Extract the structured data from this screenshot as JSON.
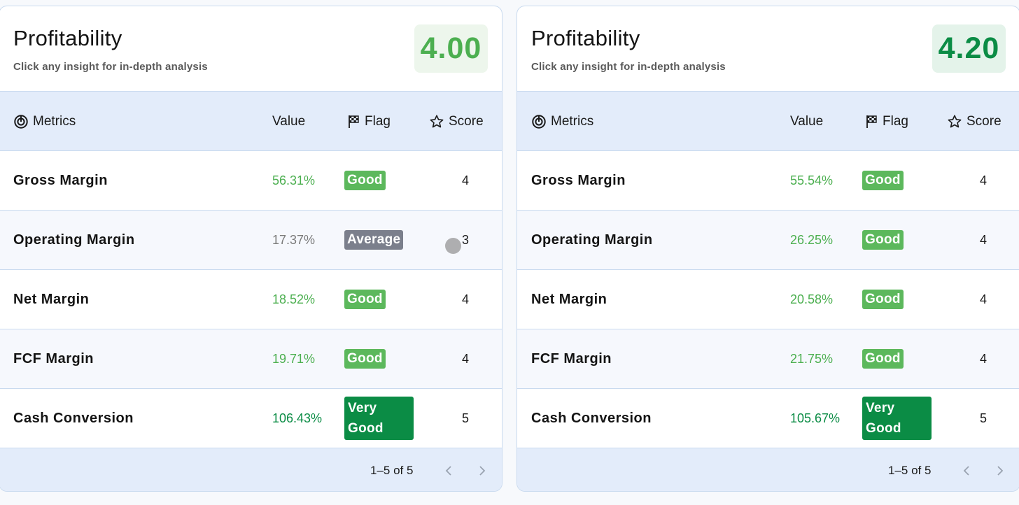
{
  "colors": {
    "good_value": "#4caf50",
    "average_value": "#7a7a7a",
    "very_good_value": "#0b8c45",
    "badge_good_bg": "#5cb85c",
    "badge_average_bg": "#7b7f8c",
    "badge_very_good_bg": "#0b8c45",
    "header_bg": "#e3ecfa",
    "border": "#c9daef"
  },
  "cards": [
    {
      "title": "Profitability",
      "subtitle": "Click any insight for in-depth analysis",
      "overall_score": "4.00",
      "overall_score_color": "#4caf50",
      "overall_score_bg": "#edf6ec",
      "columns": {
        "metrics": "Metrics",
        "value": "Value",
        "flag": "Flag",
        "score": "Score"
      },
      "rows": [
        {
          "name": "Gross Margin",
          "value": "56.31%",
          "value_color": "#4caf50",
          "flag": "Good",
          "flag_type": "good",
          "score": "4"
        },
        {
          "name": "Operating Margin",
          "value": "17.37%",
          "value_color": "#7a7a7a",
          "flag": "Average",
          "flag_type": "average",
          "score": "3"
        },
        {
          "name": "Net Margin",
          "value": "18.52%",
          "value_color": "#4caf50",
          "flag": "Good",
          "flag_type": "good",
          "score": "4"
        },
        {
          "name": "FCF Margin",
          "value": "19.71%",
          "value_color": "#4caf50",
          "flag": "Good",
          "flag_type": "good",
          "score": "4"
        },
        {
          "name": "Cash Conversion",
          "value": "106.43%",
          "value_color": "#0b8c45",
          "flag": "Very Good",
          "flag_type": "very_good",
          "score": "5"
        }
      ],
      "pagination": "1–5 of 5"
    },
    {
      "title": "Profitability",
      "subtitle": "Click any insight for in-depth analysis",
      "overall_score": "4.20",
      "overall_score_color": "#0b8c45",
      "overall_score_bg": "#e4f3ea",
      "columns": {
        "metrics": "Metrics",
        "value": "Value",
        "flag": "Flag",
        "score": "Score"
      },
      "rows": [
        {
          "name": "Gross Margin",
          "value": "55.54%",
          "value_color": "#4caf50",
          "flag": "Good",
          "flag_type": "good",
          "score": "4"
        },
        {
          "name": "Operating Margin",
          "value": "26.25%",
          "value_color": "#4caf50",
          "flag": "Good",
          "flag_type": "good",
          "score": "4"
        },
        {
          "name": "Net Margin",
          "value": "20.58%",
          "value_color": "#4caf50",
          "flag": "Good",
          "flag_type": "good",
          "score": "4"
        },
        {
          "name": "FCF Margin",
          "value": "21.75%",
          "value_color": "#4caf50",
          "flag": "Good",
          "flag_type": "good",
          "score": "4"
        },
        {
          "name": "Cash Conversion",
          "value": "105.67%",
          "value_color": "#0b8c45",
          "flag": "Very Good",
          "flag_type": "very_good",
          "score": "5"
        }
      ],
      "pagination": "1–5 of 5"
    }
  ]
}
